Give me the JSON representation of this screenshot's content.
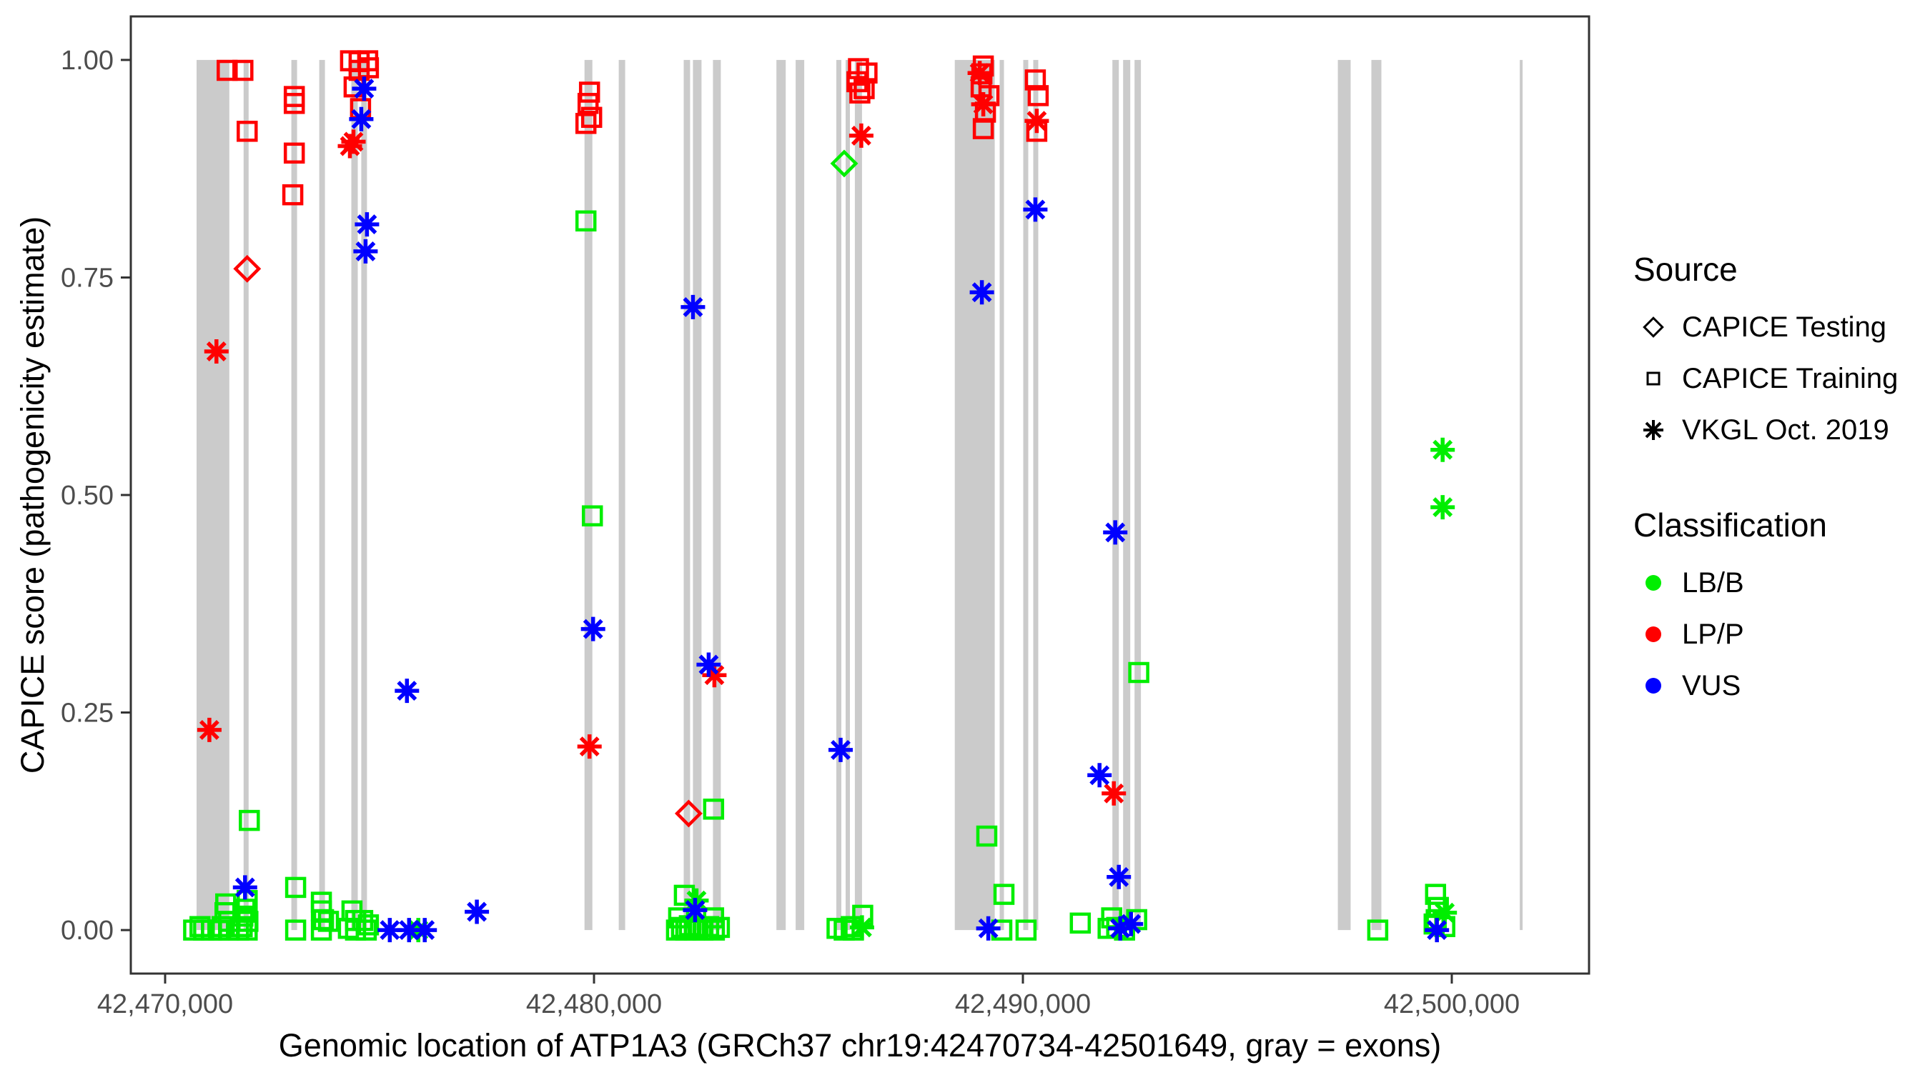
{
  "figure": {
    "x_axis_title": "Genomic location of ATP1A3 (GRCh37 chr19:42470734-42501649, gray = exons)",
    "y_axis_title": "CAPICE score (pathogenicity estimate)"
  },
  "legend": {
    "source": {
      "title": "Source",
      "items": [
        {
          "shape": "diamond",
          "label": "CAPICE Testing"
        },
        {
          "shape": "square",
          "label": "CAPICE Training"
        },
        {
          "shape": "asterisk",
          "label": "VKGL Oct. 2019"
        }
      ]
    },
    "classification": {
      "title": "Classification",
      "items": [
        {
          "color": "#00ee00",
          "label": "LB/B"
        },
        {
          "color": "#ff0000",
          "label": "LP/P"
        },
        {
          "color": "#0000ff",
          "label": "VUS"
        }
      ]
    }
  },
  "colors": {
    "exon_gray": "#cbcbcb",
    "axis_text": "#4d4d4d",
    "panel_border": "#333333",
    "lbb_green": "#00ee00",
    "lpp_red": "#ff0000",
    "vus_blue": "#0000ff"
  },
  "chart_data": {
    "type": "scatter",
    "title": "",
    "xlabel": "Genomic location of ATP1A3 (GRCh37 chr19:42470734-42501649, gray = exons)",
    "ylabel": "CAPICE score (pathogenicity estimate)",
    "xlim": [
      42469200,
      42503200
    ],
    "ylim": [
      -0.05,
      1.05
    ],
    "grid": false,
    "legend_position": "right",
    "x_ticks": [
      {
        "value": 42470000,
        "label": "42,470,000"
      },
      {
        "value": 42480000,
        "label": "42,480,000"
      },
      {
        "value": 42490000,
        "label": "42,490,000"
      },
      {
        "value": 42500000,
        "label": "42,500,000"
      }
    ],
    "y_ticks": [
      {
        "value": 0.0,
        "label": "0.00"
      },
      {
        "value": 0.25,
        "label": "0.25"
      },
      {
        "value": 0.5,
        "label": "0.50"
      },
      {
        "value": 0.75,
        "label": "0.75"
      },
      {
        "value": 1.0,
        "label": "1.00"
      }
    ],
    "exons": [
      [
        42470734,
        42471497
      ],
      [
        42471830,
        42471946
      ],
      [
        42472944,
        42473077
      ],
      [
        42473593,
        42473726
      ],
      [
        42474341,
        42474491
      ],
      [
        42474574,
        42474707
      ],
      [
        42479779,
        42479962
      ],
      [
        42480577,
        42480727
      ],
      [
        42482091,
        42482240
      ],
      [
        42482307,
        42482507
      ],
      [
        42482773,
        42482956
      ],
      [
        42484253,
        42484469
      ],
      [
        42484702,
        42484902
      ],
      [
        42485650,
        42485766
      ],
      [
        42485866,
        42485966
      ],
      [
        42486082,
        42486249
      ],
      [
        42488411,
        42489343
      ],
      [
        42489459,
        42489559
      ],
      [
        42490008,
        42490124
      ],
      [
        42490241,
        42490357
      ],
      [
        42492087,
        42492237
      ],
      [
        42492337,
        42492503
      ],
      [
        42492603,
        42492752
      ],
      [
        42497343,
        42497642
      ],
      [
        42498125,
        42498358
      ],
      [
        42501585,
        42501652
      ]
    ],
    "series": [
      {
        "name": "CAPICE Testing LP/P",
        "source": "CAPICE Testing",
        "classification": "LP/P",
        "shape": "diamond",
        "color": "#ff0000",
        "points": [
          [
            42471913,
            0.76
          ],
          [
            42482207,
            0.134
          ]
        ]
      },
      {
        "name": "CAPICE Testing LB/B",
        "source": "CAPICE Testing",
        "classification": "LB/B",
        "shape": "diamond",
        "color": "#00ee00",
        "points": [
          [
            42485833,
            0.881
          ]
        ]
      },
      {
        "name": "CAPICE Training LP/P",
        "source": "CAPICE Training",
        "classification": "LP/P",
        "shape": "square",
        "color": "#ff0000",
        "points": [
          [
            42471447,
            0.988
          ],
          [
            42471813,
            0.988
          ],
          [
            42471913,
            0.918
          ],
          [
            42473011,
            0.958
          ],
          [
            42473011,
            0.95
          ],
          [
            42473011,
            0.893
          ],
          [
            42472977,
            0.845
          ],
          [
            42474324,
            0.999
          ],
          [
            42474723,
            0.999
          ],
          [
            42474524,
            0.998
          ],
          [
            42474740,
            0.991
          ],
          [
            42474524,
            0.988
          ],
          [
            42474407,
            0.969
          ],
          [
            42474557,
            0.944
          ],
          [
            42479895,
            0.963
          ],
          [
            42479862,
            0.95
          ],
          [
            42479945,
            0.934
          ],
          [
            42479812,
            0.927
          ],
          [
            42486166,
            0.99
          ],
          [
            42486365,
            0.985
          ],
          [
            42486132,
            0.975
          ],
          [
            42486299,
            0.967
          ],
          [
            42486199,
            0.962
          ],
          [
            42489076,
            0.993
          ],
          [
            42489043,
            0.984
          ],
          [
            42489026,
            0.969
          ],
          [
            42489209,
            0.959
          ],
          [
            42489126,
            0.94
          ],
          [
            42489076,
            0.921
          ],
          [
            42490290,
            0.977
          ],
          [
            42490357,
            0.959
          ],
          [
            42490324,
            0.918
          ]
        ]
      },
      {
        "name": "CAPICE Training LB/B",
        "source": "CAPICE Training",
        "classification": "LB/B",
        "shape": "square",
        "color": "#00ee00",
        "points": [
          [
            42470665,
            0.0
          ],
          [
            42470814,
            0.004
          ],
          [
            42470898,
            0.0
          ],
          [
            42471081,
            0.0
          ],
          [
            42471247,
            0.0
          ],
          [
            42471330,
            0.004
          ],
          [
            42471397,
            0.02
          ],
          [
            42471413,
            0.03
          ],
          [
            42471480,
            0.01
          ],
          [
            42471480,
            0.0
          ],
          [
            42471713,
            0.0
          ],
          [
            42471796,
            0.004
          ],
          [
            42471813,
            0.016
          ],
          [
            42471863,
            0.024
          ],
          [
            42471913,
            0.034
          ],
          [
            42471913,
            0.0
          ],
          [
            42471930,
            0.01
          ],
          [
            42471963,
            0.126
          ],
          [
            42473044,
            0.049
          ],
          [
            42473044,
            0.0
          ],
          [
            42473643,
            0.032
          ],
          [
            42473643,
            0.022
          ],
          [
            42473693,
            0.012
          ],
          [
            42473809,
            0.01
          ],
          [
            42473643,
            0.0
          ],
          [
            42474357,
            0.022
          ],
          [
            42474440,
            0.011
          ],
          [
            42474274,
            0.002
          ],
          [
            42474440,
            0.0
          ],
          [
            42474607,
            0.011
          ],
          [
            42474690,
            0.0
          ],
          [
            42474740,
            0.006
          ],
          [
            42479812,
            0.815
          ],
          [
            42479962,
            0.476
          ],
          [
            42482789,
            0.139
          ],
          [
            42482107,
            0.04
          ],
          [
            42481974,
            0.014
          ],
          [
            42482789,
            0.014
          ],
          [
            42481924,
            0.0
          ],
          [
            42482040,
            0.003
          ],
          [
            42482140,
            0.0
          ],
          [
            42482223,
            0.005
          ],
          [
            42482340,
            0.0
          ],
          [
            42482423,
            0.002
          ],
          [
            42482540,
            0.0
          ],
          [
            42482673,
            0.004
          ],
          [
            42482806,
            0.0
          ],
          [
            42482923,
            0.003
          ],
          [
            42486265,
            0.017
          ],
          [
            42485667,
            0.002
          ],
          [
            42485833,
            0.0
          ],
          [
            42485999,
            0.004
          ],
          [
            42486049,
            0.0
          ],
          [
            42489159,
            0.108
          ],
          [
            42489559,
            0.041
          ],
          [
            42489509,
            0.0
          ],
          [
            42490074,
            0.0
          ],
          [
            42491338,
            0.008
          ],
          [
            42492702,
            0.296
          ],
          [
            42491987,
            0.002
          ],
          [
            42492187,
            0.003
          ],
          [
            42492653,
            0.012
          ],
          [
            42492070,
            0.014
          ],
          [
            42492370,
            0.0
          ],
          [
            42498274,
            0.0
          ],
          [
            42499621,
            0.041
          ],
          [
            42499687,
            0.026
          ],
          [
            42499637,
            0.012
          ],
          [
            42499588,
            0.007
          ],
          [
            42499837,
            0.004
          ]
        ]
      },
      {
        "name": "VKGL Oct. 2019 LP/P",
        "source": "VKGL Oct. 2019",
        "classification": "LP/P",
        "shape": "asterisk",
        "color": "#ff0000",
        "points": [
          [
            42471197,
            0.665
          ],
          [
            42471031,
            0.23
          ],
          [
            42474391,
            0.906
          ],
          [
            42474308,
            0.901
          ],
          [
            42479895,
            0.211
          ],
          [
            42482806,
            0.293
          ],
          [
            42486232,
            0.913
          ],
          [
            42488993,
            0.985
          ],
          [
            42489076,
            0.949
          ],
          [
            42490324,
            0.93
          ],
          [
            42492120,
            0.157
          ]
        ]
      },
      {
        "name": "VKGL Oct. 2019 LB/B",
        "source": "VKGL Oct. 2019",
        "classification": "LB/B",
        "shape": "asterisk",
        "color": "#00ee00",
        "points": [
          [
            42475904,
            0.0
          ],
          [
            42482390,
            0.034
          ],
          [
            42486249,
            0.003
          ],
          [
            42499787,
            0.552
          ],
          [
            42499787,
            0.486
          ],
          [
            42499837,
            0.02
          ]
        ]
      },
      {
        "name": "VKGL Oct. 2019 VUS",
        "source": "VKGL Oct. 2019",
        "classification": "VUS",
        "shape": "asterisk",
        "color": "#0000ff",
        "points": [
          [
            42471863,
            0.049
          ],
          [
            42474640,
            0.967
          ],
          [
            42474574,
            0.932
          ],
          [
            42474707,
            0.811
          ],
          [
            42474674,
            0.78
          ],
          [
            42475638,
            0.275
          ],
          [
            42475239,
            0.0
          ],
          [
            42475688,
            0.0
          ],
          [
            42476054,
            0.0
          ],
          [
            42477268,
            0.021
          ],
          [
            42479978,
            0.346
          ],
          [
            42482307,
            0.716
          ],
          [
            42482673,
            0.305
          ],
          [
            42482357,
            0.023
          ],
          [
            42485750,
            0.207
          ],
          [
            42489043,
            0.733
          ],
          [
            42490290,
            0.828
          ],
          [
            42489193,
            0.002
          ],
          [
            42492153,
            0.457
          ],
          [
            42491787,
            0.178
          ],
          [
            42492270,
            0.002
          ],
          [
            42492520,
            0.007
          ],
          [
            42492237,
            0.061
          ],
          [
            42499654,
            0.0
          ]
        ]
      }
    ]
  }
}
